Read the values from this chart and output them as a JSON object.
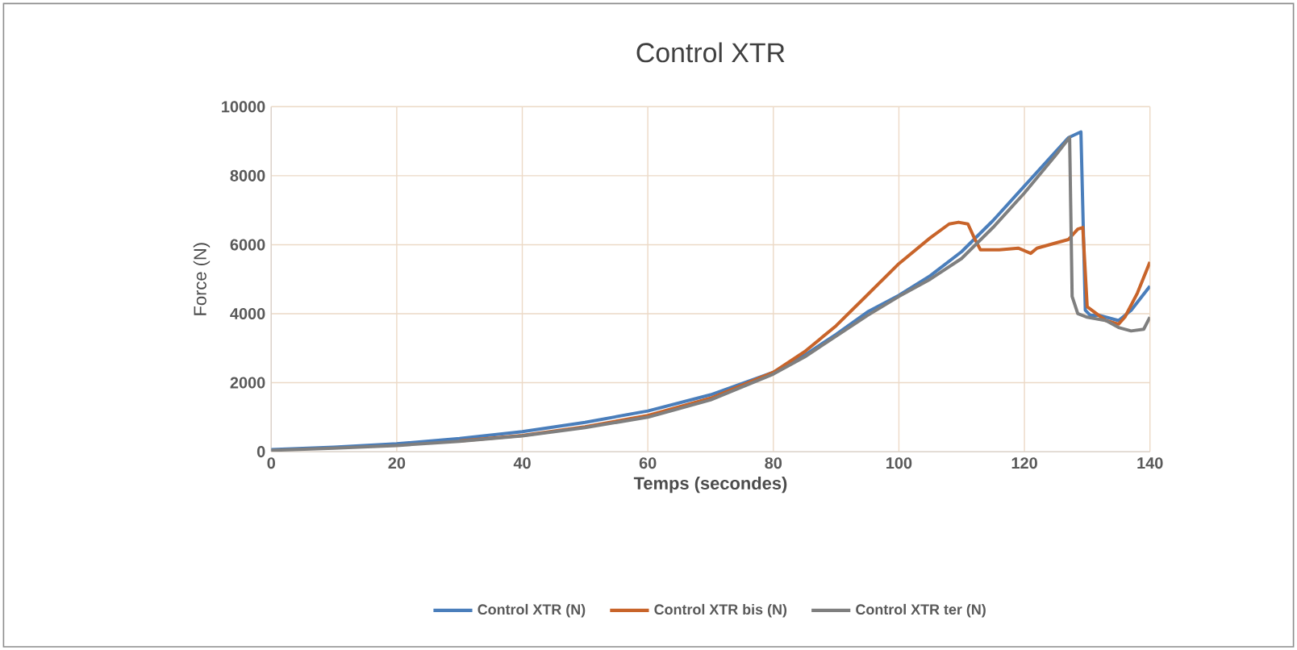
{
  "chart_data": {
    "type": "line",
    "title": "Control XTR",
    "xlabel": "Temps (secondes)",
    "ylabel": "Force (N)",
    "xlim": [
      0,
      140
    ],
    "xticks": [
      0,
      20,
      40,
      60,
      80,
      100,
      120,
      140
    ],
    "ylim": [
      0,
      10000
    ],
    "yticks": [
      0,
      2000,
      4000,
      6000,
      8000,
      10000
    ],
    "grid": true,
    "legend": "bottom",
    "marker": "none",
    "line_style": "solid",
    "series": [
      {
        "name": "Control XTR (N)",
        "color": "#4a7ebb",
        "x": [
          0,
          10,
          20,
          30,
          40,
          50,
          60,
          70,
          80,
          85,
          90,
          95,
          100,
          105,
          110,
          115,
          120,
          125,
          127,
          129,
          129.7,
          130.5,
          132,
          135,
          137,
          140
        ],
        "values": [
          60,
          130,
          230,
          380,
          580,
          850,
          1180,
          1650,
          2300,
          2800,
          3400,
          4050,
          4530,
          5100,
          5800,
          6700,
          7700,
          8700,
          9100,
          9270,
          4100,
          3950,
          3950,
          3800,
          4100,
          4800
        ]
      },
      {
        "name": "Control XTR bis (N)",
        "color": "#c8642a",
        "x": [
          30,
          40,
          50,
          60,
          70,
          80,
          85,
          90,
          95,
          100,
          105,
          108,
          109.5,
          111,
          112,
          113,
          116,
          119,
          121,
          122,
          125,
          127,
          128.5,
          129.3,
          130,
          133,
          135,
          136,
          138,
          140
        ],
        "values": [
          310,
          470,
          720,
          1050,
          1550,
          2300,
          2900,
          3650,
          4550,
          5450,
          6200,
          6600,
          6650,
          6600,
          6200,
          5850,
          5850,
          5900,
          5750,
          5900,
          6050,
          6150,
          6450,
          6500,
          4200,
          3800,
          3700,
          3900,
          4600,
          5500
        ]
      },
      {
        "name": "Control XTR ter (N)",
        "color": "#7f7f7f",
        "x": [
          0,
          10,
          20,
          30,
          40,
          50,
          60,
          70,
          80,
          85,
          90,
          95,
          100,
          105,
          110,
          115,
          120,
          125,
          127.2,
          127.6,
          128.5,
          130,
          133,
          135,
          137,
          139,
          140
        ],
        "values": [
          40,
          100,
          180,
          300,
          460,
          700,
          1000,
          1500,
          2250,
          2750,
          3350,
          3950,
          4500,
          5000,
          5600,
          6500,
          7500,
          8600,
          9110,
          4500,
          4000,
          3900,
          3800,
          3600,
          3500,
          3550,
          3900
        ]
      }
    ]
  }
}
